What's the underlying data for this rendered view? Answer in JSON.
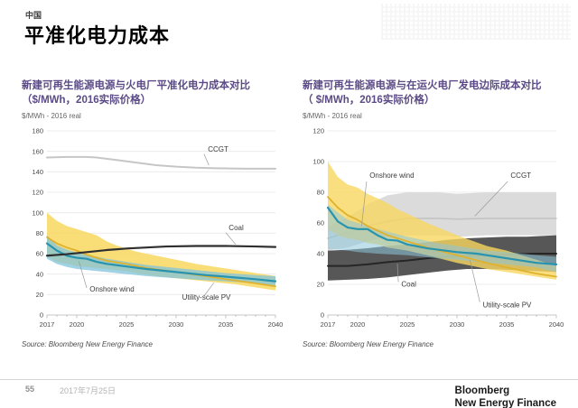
{
  "page": {
    "kicker": "中国",
    "title": "平准化电力成本"
  },
  "footer": {
    "page_number": "55",
    "date": "2017年7月25日",
    "logo_line1": "Bloomberg",
    "logo_line2": "New Energy Finance"
  },
  "chart_data": [
    {
      "type": "line",
      "name": "lcoe-comparison",
      "title_line1": "新建可再生能源电源与火电厂平准化电力成本对比",
      "title_line2": "（$/MWh，2016实际价格）",
      "unit_label": "$/MWh - 2016 real",
      "source": "Source: Bloomberg New Energy Finance",
      "xlim": [
        2017,
        2040
      ],
      "ylim": [
        0,
        180
      ],
      "ytick_step": 20,
      "xticks": [
        2017,
        2020,
        2025,
        2030,
        2035,
        2040
      ],
      "grid": true,
      "layers": [
        {
          "kind": "band",
          "name": "utility-scale-pv-range",
          "color": "#F8D75F",
          "opacity": 0.85,
          "x": [
            2017,
            2018,
            2019,
            2020,
            2021,
            2022,
            2023,
            2024,
            2025,
            2026,
            2028,
            2030,
            2032,
            2034,
            2036,
            2038,
            2040
          ],
          "top": [
            100,
            92,
            87,
            84,
            81,
            78,
            72,
            68,
            65,
            62,
            58,
            54,
            50,
            47,
            44,
            41,
            38
          ],
          "bottom": [
            57,
            52,
            50,
            48,
            47,
            46,
            45,
            44,
            43,
            41,
            38,
            36,
            34,
            32,
            30,
            27,
            24
          ]
        },
        {
          "kind": "band",
          "name": "onshore-wind-range",
          "color": "#7FC3DC",
          "opacity": 0.75,
          "x": [
            2017,
            2018,
            2019,
            2020,
            2021,
            2022,
            2023,
            2025,
            2027,
            2030,
            2033,
            2035,
            2038,
            2040
          ],
          "top": [
            78,
            68,
            64,
            61,
            59,
            57,
            55,
            52,
            49,
            46,
            43,
            41,
            39,
            38
          ],
          "bottom": [
            55,
            50,
            47,
            45,
            44,
            43,
            42,
            40,
            38,
            36,
            34,
            33,
            31,
            29
          ]
        },
        {
          "kind": "line",
          "name": "utility-scale-pv",
          "color": "#DFB22D",
          "width": 1.8,
          "x": [
            2017,
            2018,
            2019,
            2020,
            2021,
            2022,
            2023,
            2025,
            2027,
            2030,
            2033,
            2035,
            2038,
            2040
          ],
          "y": [
            76,
            70,
            66,
            63,
            59,
            56,
            53,
            50,
            46,
            42,
            38,
            35,
            31,
            28
          ]
        },
        {
          "kind": "line",
          "name": "onshore-wind",
          "color": "#2793AE",
          "width": 2.2,
          "x": [
            2017,
            2018,
            2019,
            2020,
            2021,
            2022,
            2023,
            2025,
            2027,
            2030,
            2033,
            2035,
            2038,
            2040
          ],
          "y": [
            70,
            63,
            58,
            56,
            55,
            52,
            50,
            47.5,
            45,
            42,
            39,
            37.5,
            35,
            33
          ]
        },
        {
          "kind": "line",
          "name": "coal",
          "color": "#2f2f2f",
          "width": 2.2,
          "x": [
            2017,
            2019,
            2021,
            2023,
            2025,
            2027,
            2029,
            2032,
            2035,
            2038,
            2040
          ],
          "y": [
            58,
            59.5,
            61.5,
            63.5,
            65,
            66,
            67,
            67.5,
            67.5,
            67,
            66.5
          ]
        },
        {
          "kind": "line",
          "name": "ccgt",
          "color": "#c6c6c6",
          "width": 2,
          "x": [
            2017,
            2019,
            2021,
            2022,
            2024,
            2026,
            2028,
            2030,
            2032,
            2034,
            2037,
            2040
          ],
          "y": [
            154,
            154.5,
            154.5,
            154,
            151.5,
            149,
            146.5,
            145,
            144,
            143.5,
            143,
            143
          ]
        }
      ],
      "annotations": [
        {
          "label": "CCGT",
          "tx": 2033.2,
          "ty": 159.5,
          "anchor": "start",
          "leader": [
            [
              2032.8,
              157.5
            ],
            [
              2033.3,
              146.5
            ]
          ]
        },
        {
          "label": "Coal",
          "tx": 2035.3,
          "ty": 83,
          "anchor": "start",
          "leader": [
            [
              2035.0,
              80.5
            ],
            [
              2036.0,
              69
            ]
          ]
        },
        {
          "label": "Onshore wind",
          "tx": 2021.3,
          "ty": 23,
          "anchor": "start",
          "leader": [
            [
              2021.0,
              26.5
            ],
            [
              2020.2,
              53
            ]
          ]
        },
        {
          "label": "Utility-scale PV",
          "tx": 2030.6,
          "ty": 15,
          "anchor": "start",
          "leader": [
            [
              2032.8,
              18.5
            ],
            [
              2033.8,
              31.5
            ]
          ]
        }
      ]
    },
    {
      "type": "line",
      "name": "marginal-cost-comparison",
      "title_line1": "新建可再生能源电源与在运火电厂发电边际成本对比",
      "title_line2": "（ $/MWh，2016实际价格）",
      "unit_label": "$/MWh - 2016 real",
      "source": "Source: Bloomberg New Energy Finance",
      "xlim": [
        2017,
        2040
      ],
      "ylim": [
        0,
        120
      ],
      "ytick_step": 20,
      "xticks": [
        2017,
        2020,
        2025,
        2030,
        2035,
        2040
      ],
      "grid": true,
      "layers": [
        {
          "kind": "band",
          "name": "ccgt-range",
          "color": "#DBDBDB",
          "opacity": 1,
          "x": [
            2017,
            2019,
            2021,
            2023,
            2025,
            2028,
            2030,
            2033,
            2035,
            2038,
            2040
          ],
          "top": [
            57,
            64,
            72,
            78,
            80,
            80,
            79,
            80,
            80,
            80,
            80
          ],
          "bottom": [
            42,
            44,
            48,
            51,
            52,
            52,
            51,
            52,
            52,
            52,
            52
          ]
        },
        {
          "kind": "line",
          "name": "ccgt",
          "color": "#c3c3c3",
          "width": 1.6,
          "x": [
            2017,
            2019,
            2021,
            2023,
            2025,
            2028,
            2030,
            2033,
            2035,
            2038,
            2040
          ],
          "y": [
            50,
            54,
            58,
            61,
            63,
            63,
            62.5,
            63,
            63,
            63,
            63
          ]
        },
        {
          "kind": "band",
          "name": "coal-range",
          "color": "#575757",
          "opacity": 1,
          "x": [
            2017,
            2019,
            2021,
            2023,
            2025,
            2027,
            2029,
            2031,
            2033,
            2035,
            2037,
            2040
          ],
          "top": [
            42,
            42.5,
            43.5,
            45,
            46,
            47.5,
            49,
            50,
            50.5,
            51,
            51,
            52
          ],
          "bottom": [
            22.5,
            23,
            23.5,
            24.5,
            26,
            27.5,
            29,
            30,
            30,
            29.5,
            29,
            28
          ]
        },
        {
          "kind": "line",
          "name": "coal",
          "color": "#262626",
          "width": 2,
          "x": [
            2017,
            2019,
            2021,
            2023,
            2025,
            2027,
            2029,
            2031,
            2033,
            2035,
            2038,
            2040
          ],
          "y": [
            32,
            32,
            33,
            34.5,
            35.5,
            37,
            38,
            38.5,
            39,
            39.5,
            40,
            40
          ]
        },
        {
          "kind": "band",
          "name": "utility-scale-pv-range",
          "color": "#F8D75F",
          "opacity": 0.8,
          "x": [
            2017,
            2018,
            2019,
            2020,
            2021,
            2022,
            2023,
            2024,
            2025,
            2027,
            2030,
            2033,
            2035,
            2038,
            2040
          ],
          "top": [
            100,
            90,
            85,
            83,
            79,
            76,
            73,
            69,
            66,
            60,
            52,
            45,
            42,
            36,
            32
          ],
          "bottom": [
            56,
            52,
            50,
            49,
            47,
            46,
            44,
            43,
            42,
            39,
            34,
            30,
            28,
            25,
            23
          ]
        },
        {
          "kind": "band",
          "name": "onshore-wind-range",
          "color": "#8CC6DC",
          "opacity": 0.55,
          "x": [
            2017,
            2019,
            2020,
            2022,
            2025,
            2028,
            2030,
            2033,
            2035,
            2038,
            2040
          ],
          "top": [
            72,
            62,
            60,
            56,
            51,
            47,
            45,
            42,
            41,
            39,
            38
          ],
          "bottom": [
            43,
            42,
            41,
            40,
            39,
            37,
            36,
            34,
            33,
            31,
            28
          ]
        },
        {
          "kind": "line",
          "name": "utility-scale-pv",
          "color": "#DFB22D",
          "width": 1.8,
          "x": [
            2017,
            2018,
            2019,
            2020,
            2021,
            2022,
            2023,
            2025,
            2027,
            2030,
            2033,
            2035,
            2038,
            2040
          ],
          "y": [
            77,
            70,
            65,
            62,
            58,
            55,
            52,
            48,
            44,
            39,
            34,
            31,
            27,
            25
          ]
        },
        {
          "kind": "line",
          "name": "onshore-wind",
          "color": "#2793AE",
          "width": 2.2,
          "x": [
            2017,
            2018,
            2019,
            2020,
            2021,
            2022,
            2023,
            2024,
            2025,
            2027,
            2030,
            2032,
            2034,
            2036,
            2038,
            2040
          ],
          "y": [
            70,
            61,
            57,
            56,
            56,
            52,
            49,
            48.5,
            46,
            43.5,
            41,
            40,
            38,
            36,
            34,
            33
          ]
        }
      ],
      "annotations": [
        {
          "label": "Onshore wind",
          "tx": 2021.2,
          "ty": 89.5,
          "anchor": "start",
          "leader": [
            [
              2020.9,
              87
            ],
            [
              2020.4,
              58
            ]
          ]
        },
        {
          "label": "CCGT",
          "tx": 2035.4,
          "ty": 89.5,
          "anchor": "start",
          "leader": [
            [
              2035.1,
              87
            ],
            [
              2031.8,
              64.5
            ]
          ]
        },
        {
          "label": "Coal",
          "tx": 2024.4,
          "ty": 18.5,
          "anchor": "start",
          "leader": [
            [
              2024.1,
              21.5
            ],
            [
              2024.0,
              33.5
            ]
          ]
        },
        {
          "label": "Utility-scale PV",
          "tx": 2032.6,
          "ty": 5,
          "anchor": "start",
          "leader": [
            [
              2032.3,
              8.5
            ],
            [
              2031.3,
              36
            ]
          ]
        }
      ]
    }
  ]
}
